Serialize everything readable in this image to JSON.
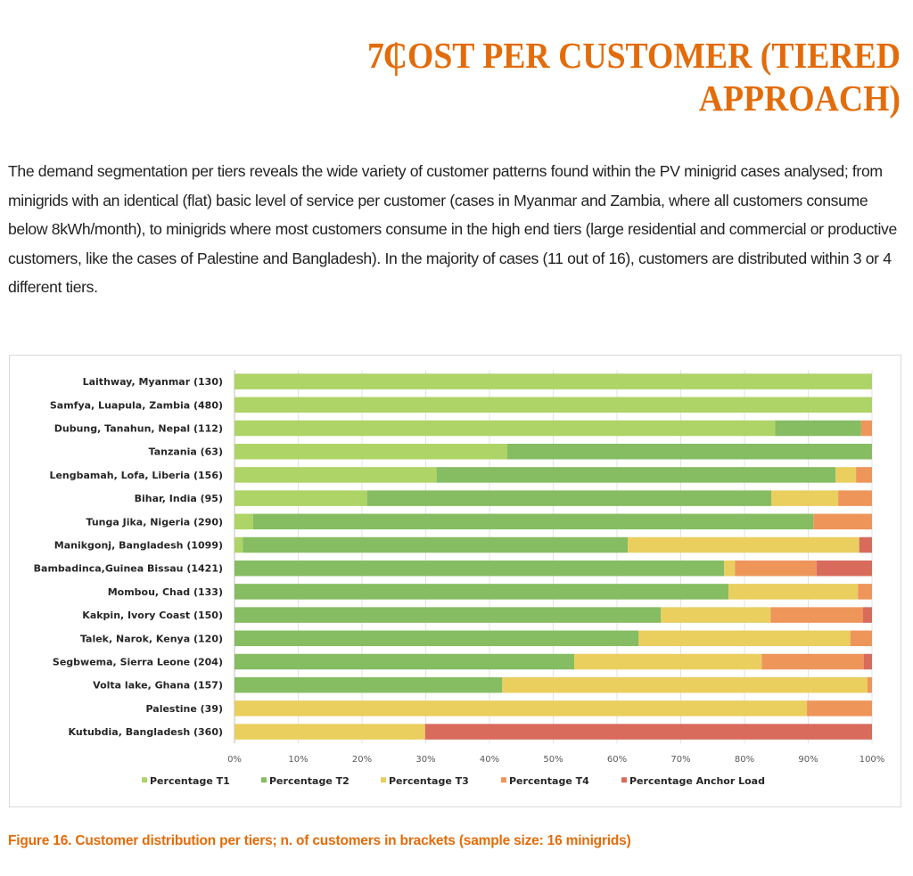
{
  "heading": {
    "number": "7 |",
    "title_line1": "COST PER CUSTOMER (TIERED",
    "title_line2": "APPROACH)"
  },
  "body_text": "The demand segmentation per tiers reveals the wide variety of customer patterns found within the PV minigrid cases analysed; from minigrids with an identical (flat) basic level of service per customer (cases in Myanmar and Zambia, where all customers consume below 8kWh/month), to minigrids where most customers consume in the high end tiers (large residential and commercial or productive customers, like the cases of Palestine and Bangladesh). In the majority of cases (11 out of 16), customers are distributed within 3 or 4 different tiers.",
  "caption": "Figure 16. Customer distribution per tiers; n. of customers in brackets (sample size: 16 minigrids)",
  "chart_data": {
    "type": "bar",
    "orientation": "horizontal",
    "stacked": "percent",
    "title": "",
    "xlabel": "",
    "ylabel": "",
    "xlim": [
      0,
      100
    ],
    "x_ticks": [
      "0%",
      "10%",
      "20%",
      "30%",
      "40%",
      "50%",
      "60%",
      "70%",
      "80%",
      "90%",
      "100%"
    ],
    "grid": true,
    "legend_position": "bottom",
    "categories": [
      "Laithway, Myanmar (130)",
      "Samfya, Luapula, Zambia (480)",
      "Dubung, Tanahun, Nepal (112)",
      "Tanzania (63)",
      "Lengbamah, Lofa, Liberia (156)",
      "Bihar, India (95)",
      "Tunga Jika, Nigeria (290)",
      "Manikgonj, Bangladesh (1099)",
      "Bambadinca,Guinea Bissau (1421)",
      "Mombou, Chad (133)",
      "Kakpin, Ivory Coast (150)",
      "Talek, Narok, Kenya (120)",
      "Segbwema, Sierra Leone (204)",
      "Volta lake, Ghana (157)",
      "Palestine (39)",
      "Kutubdia, Bangladesh (360)"
    ],
    "series": [
      {
        "name": "Percentage T1",
        "color": "#AED366",
        "values": [
          100,
          100,
          84.8,
          42.8,
          31.7,
          20.8,
          2.9,
          1.3,
          0,
          0,
          0,
          0,
          0,
          0,
          0,
          0
        ]
      },
      {
        "name": "Percentage T2",
        "color": "#86BC62",
        "values": [
          0,
          0,
          13.5,
          57.2,
          62.6,
          63.4,
          87.9,
          60.4,
          76.8,
          77.5,
          66.9,
          63.4,
          53.3,
          42.0,
          0,
          0
        ]
      },
      {
        "name": "Percentage T3",
        "color": "#EACE5E",
        "values": [
          0,
          0,
          0,
          0,
          3.2,
          10.5,
          0,
          36.3,
          1.7,
          20.3,
          17.2,
          33.2,
          29.4,
          57.3,
          89.8,
          29.9
        ]
      },
      {
        "name": "Percentage T4",
        "color": "#EE955A",
        "values": [
          0,
          0,
          1.7,
          0,
          2.5,
          5.3,
          9.2,
          0,
          12.8,
          2.2,
          14.5,
          3.4,
          16.0,
          0.7,
          10.2,
          0
        ]
      },
      {
        "name": "Percentage Anchor Load",
        "color": "#D86B5C",
        "values": [
          0,
          0,
          0,
          0,
          0,
          0,
          0,
          2.0,
          8.7,
          0,
          1.4,
          0,
          1.3,
          0,
          0,
          70.1
        ]
      }
    ]
  }
}
